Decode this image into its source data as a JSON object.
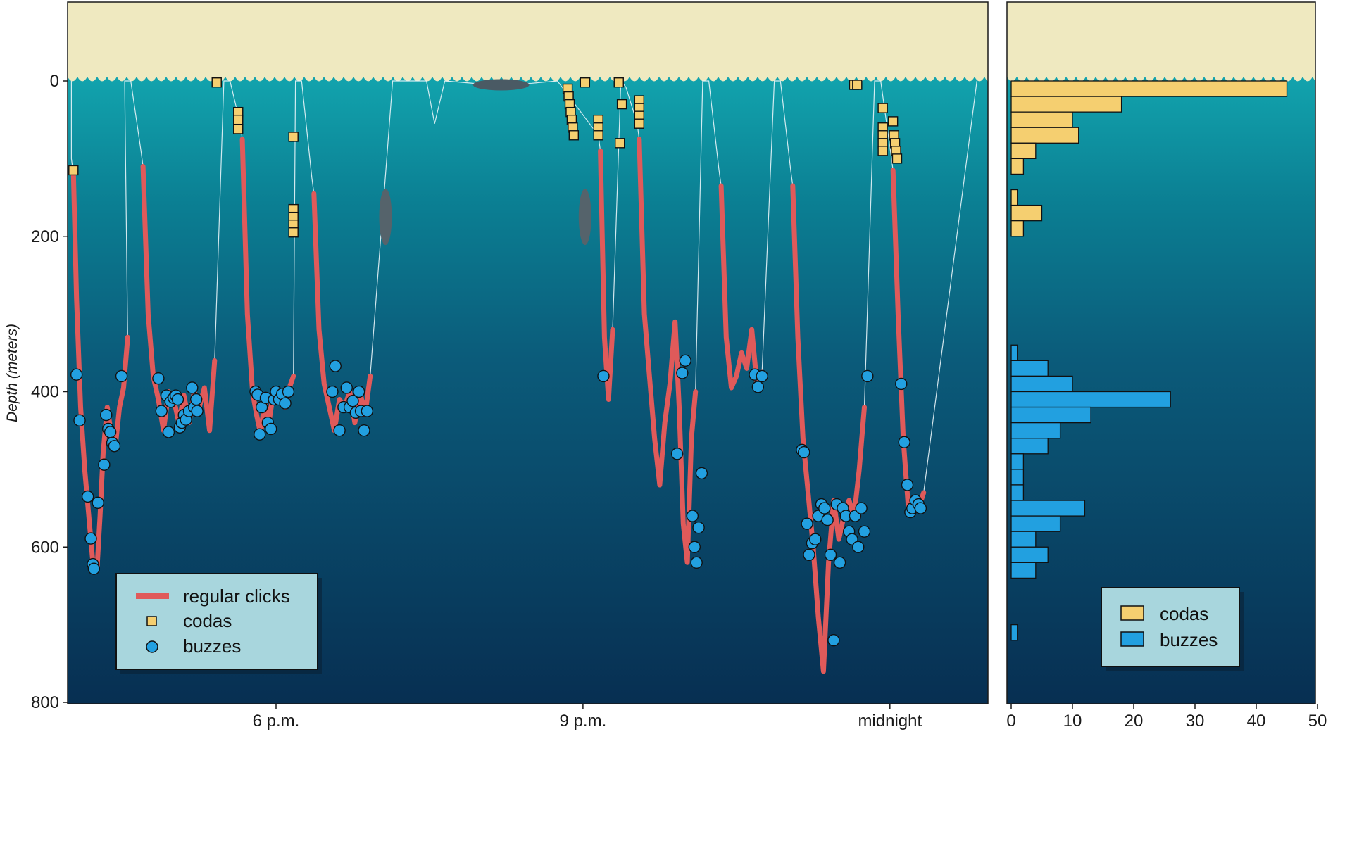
{
  "chart_data": [
    {
      "type": "line",
      "title": "",
      "xlabel": "",
      "ylabel": "Depth (meters)",
      "ylim": [
        800,
        -100
      ],
      "y_ticks": [
        "0",
        "200",
        "400",
        "600",
        "800"
      ],
      "x_ticks": [
        "6 p.m.",
        "9 p.m.",
        "midnight"
      ],
      "x_units": "hours",
      "x_tick_values": [
        18,
        21,
        24
      ],
      "xlim": [
        16,
        25
      ],
      "legend": {
        "position": "bottom-left",
        "entries": [
          "regular clicks",
          "codas",
          "buzzes"
        ]
      },
      "series": [
        {
          "name": "regular clicks",
          "color": "#e05a5a",
          "segments": [
            [
              [
                16.02,
                120
              ],
              [
                16.05,
                280
              ],
              [
                16.09,
                420
              ],
              [
                16.13,
                500
              ],
              [
                16.17,
                560
              ],
              [
                16.21,
                620
              ],
              [
                16.25,
                630
              ],
              [
                16.28,
                560
              ],
              [
                16.31,
                480
              ],
              [
                16.35,
                420
              ],
              [
                16.39,
                455
              ],
              [
                16.43,
                470
              ],
              [
                16.47,
                420
              ],
              [
                16.51,
                395
              ],
              [
                16.55,
                330
              ]
            ],
            [
              [
                16.7,
                110
              ],
              [
                16.75,
                300
              ],
              [
                16.8,
                380
              ],
              [
                16.85,
                410
              ],
              [
                16.9,
                450
              ],
              [
                16.95,
                400
              ],
              [
                17.0,
                410
              ],
              [
                17.05,
                440
              ],
              [
                17.1,
                405
              ],
              [
                17.15,
                440
              ],
              [
                17.2,
                400
              ],
              [
                17.25,
                420
              ],
              [
                17.3,
                395
              ],
              [
                17.35,
                450
              ],
              [
                17.4,
                360
              ]
            ],
            [
              [
                17.67,
                75
              ],
              [
                17.72,
                300
              ],
              [
                17.77,
                400
              ],
              [
                17.81,
                430
              ],
              [
                17.85,
                455
              ],
              [
                17.89,
                410
              ],
              [
                17.93,
                440
              ],
              [
                17.97,
                405
              ],
              [
                18.01,
                410
              ],
              [
                18.05,
                400
              ],
              [
                18.09,
                420
              ],
              [
                18.13,
                395
              ],
              [
                18.17,
                380
              ]
            ],
            [
              [
                18.37,
                145
              ],
              [
                18.42,
                320
              ],
              [
                18.47,
                390
              ],
              [
                18.52,
                420
              ],
              [
                18.57,
                450
              ],
              [
                18.62,
                410
              ],
              [
                18.67,
                420
              ],
              [
                18.72,
                400
              ],
              [
                18.77,
                440
              ],
              [
                18.82,
                400
              ],
              [
                18.87,
                430
              ],
              [
                18.92,
                380
              ]
            ],
            [
              [
                21.17,
                90
              ],
              [
                21.21,
                330
              ],
              [
                21.25,
                410
              ],
              [
                21.29,
                320
              ]
            ],
            [
              [
                21.55,
                75
              ],
              [
                21.6,
                300
              ],
              [
                21.65,
                380
              ],
              [
                21.7,
                460
              ],
              [
                21.75,
                520
              ],
              [
                21.8,
                440
              ],
              [
                21.85,
                390
              ],
              [
                21.9,
                310
              ],
              [
                21.94,
                420
              ],
              [
                21.98,
                570
              ],
              [
                22.02,
                620
              ],
              [
                22.06,
                460
              ],
              [
                22.1,
                400
              ]
            ],
            [
              [
                22.35,
                135
              ],
              [
                22.4,
                330
              ],
              [
                22.45,
                395
              ],
              [
                22.5,
                380
              ],
              [
                22.55,
                350
              ],
              [
                22.6,
                370
              ],
              [
                22.65,
                320
              ],
              [
                22.7,
                390
              ],
              [
                22.75,
                375
              ]
            ],
            [
              [
                23.05,
                135
              ],
              [
                23.1,
                330
              ],
              [
                23.15,
                460
              ],
              [
                23.2,
                530
              ],
              [
                23.25,
                600
              ],
              [
                23.3,
                690
              ],
              [
                23.35,
                760
              ],
              [
                23.4,
                620
              ],
              [
                23.45,
                540
              ],
              [
                23.5,
                590
              ],
              [
                23.55,
                560
              ],
              [
                23.6,
                540
              ],
              [
                23.65,
                560
              ],
              [
                23.7,
                500
              ],
              [
                23.75,
                420
              ]
            ],
            [
              [
                24.03,
                115
              ],
              [
                24.08,
                300
              ],
              [
                24.13,
                460
              ],
              [
                24.18,
                550
              ],
              [
                24.23,
                540
              ],
              [
                24.28,
                550
              ],
              [
                24.33,
                530
              ]
            ]
          ]
        },
        {
          "name": "codas",
          "color": "#f5cf70",
          "x": [
            16.02,
            17.42,
            17.63,
            17.63,
            17.63,
            18.17,
            18.17,
            18.17,
            18.17,
            18.17,
            20.85,
            20.86,
            20.87,
            20.88,
            20.89,
            20.9,
            20.91,
            21.02,
            21.15,
            21.15,
            21.15,
            21.35,
            21.36,
            21.38,
            21.55,
            21.55,
            21.55,
            21.55,
            23.65,
            23.68,
            23.93,
            23.93,
            23.93,
            23.93,
            23.93,
            24.03,
            24.04,
            24.05,
            24.06,
            24.07
          ],
          "y": [
            115,
            2,
            40,
            50,
            62,
            72,
            165,
            175,
            185,
            195,
            10,
            20,
            30,
            40,
            50,
            60,
            70,
            2,
            50,
            60,
            70,
            2,
            80,
            30,
            25,
            35,
            45,
            55,
            5,
            5,
            35,
            60,
            70,
            80,
            90,
            52,
            70,
            80,
            90,
            100
          ]
        },
        {
          "name": "buzzes",
          "color": "#22a0e0",
          "x": [
            16.05,
            16.08,
            16.16,
            16.19,
            16.21,
            16.22,
            16.26,
            16.32,
            16.34,
            16.36,
            16.38,
            16.4,
            16.42,
            16.49,
            16.85,
            16.88,
            16.93,
            16.95,
            16.97,
            17.0,
            17.02,
            17.04,
            17.06,
            17.08,
            17.1,
            17.12,
            17.15,
            17.18,
            17.2,
            17.22,
            17.23,
            17.8,
            17.82,
            17.84,
            17.86,
            17.9,
            17.92,
            17.95,
            17.98,
            18.0,
            18.03,
            18.06,
            18.09,
            18.12,
            18.55,
            18.58,
            18.62,
            18.66,
            18.69,
            18.72,
            18.75,
            18.78,
            18.81,
            18.83,
            18.86,
            18.89,
            21.2,
            21.92,
            21.97,
            22.0,
            22.07,
            22.09,
            22.11,
            22.13,
            22.16,
            22.68,
            22.71,
            22.75,
            23.14,
            23.16,
            23.19,
            23.21,
            23.24,
            23.27,
            23.3,
            23.33,
            23.36,
            23.39,
            23.42,
            23.45,
            23.48,
            23.51,
            23.54,
            23.57,
            23.6,
            23.63,
            23.66,
            23.69,
            23.72,
            23.75,
            23.78,
            24.11,
            24.14,
            24.17,
            24.2,
            24.22,
            24.25,
            24.28,
            24.3
          ],
          "y": [
            378,
            437,
            535,
            589,
            622,
            628,
            543,
            494,
            430,
            448,
            452,
            466,
            470,
            380,
            383,
            425,
            405,
            452,
            413,
            408,
            405,
            410,
            446,
            440,
            430,
            436,
            425,
            395,
            420,
            410,
            425,
            400,
            404,
            455,
            420,
            408,
            440,
            448,
            410,
            400,
            410,
            403,
            415,
            400,
            400,
            367,
            450,
            420,
            395,
            420,
            412,
            427,
            400,
            425,
            450,
            425,
            380,
            480,
            376,
            360,
            560,
            600,
            620,
            575,
            505,
            378,
            394,
            380,
            475,
            478,
            570,
            610,
            595,
            590,
            560,
            545,
            550,
            565,
            610,
            720,
            545,
            620,
            550,
            560,
            580,
            590,
            560,
            600,
            550,
            580,
            380,
            390,
            465,
            520,
            555,
            550,
            540,
            545,
            550
          ]
        }
      ]
    },
    {
      "type": "bar",
      "orientation": "horizontal",
      "title": "",
      "xlabel": "",
      "ylabel": "",
      "xlim": [
        0,
        50
      ],
      "x_ticks": [
        "0",
        "10",
        "20",
        "30",
        "40",
        "50"
      ],
      "ylim": [
        800,
        -100
      ],
      "legend": {
        "position": "bottom-right",
        "entries": [
          "codas",
          "buzzes"
        ]
      },
      "bin_width_m": 20,
      "series": [
        {
          "name": "codas",
          "color": "#f5cf70",
          "bin_start_m": [
            0,
            20,
            40,
            60,
            80,
            100,
            140,
            160,
            180
          ],
          "counts": [
            45,
            18,
            10,
            11,
            4,
            2,
            1,
            5,
            2
          ]
        },
        {
          "name": "buzzes",
          "color": "#22a0e0",
          "bin_start_m": [
            340,
            360,
            380,
            400,
            420,
            440,
            460,
            480,
            500,
            520,
            540,
            560,
            580,
            600,
            620,
            700
          ],
          "counts": [
            1,
            6,
            10,
            26,
            13,
            8,
            6,
            2,
            2,
            2,
            12,
            8,
            4,
            6,
            4,
            1
          ]
        }
      ]
    }
  ]
}
